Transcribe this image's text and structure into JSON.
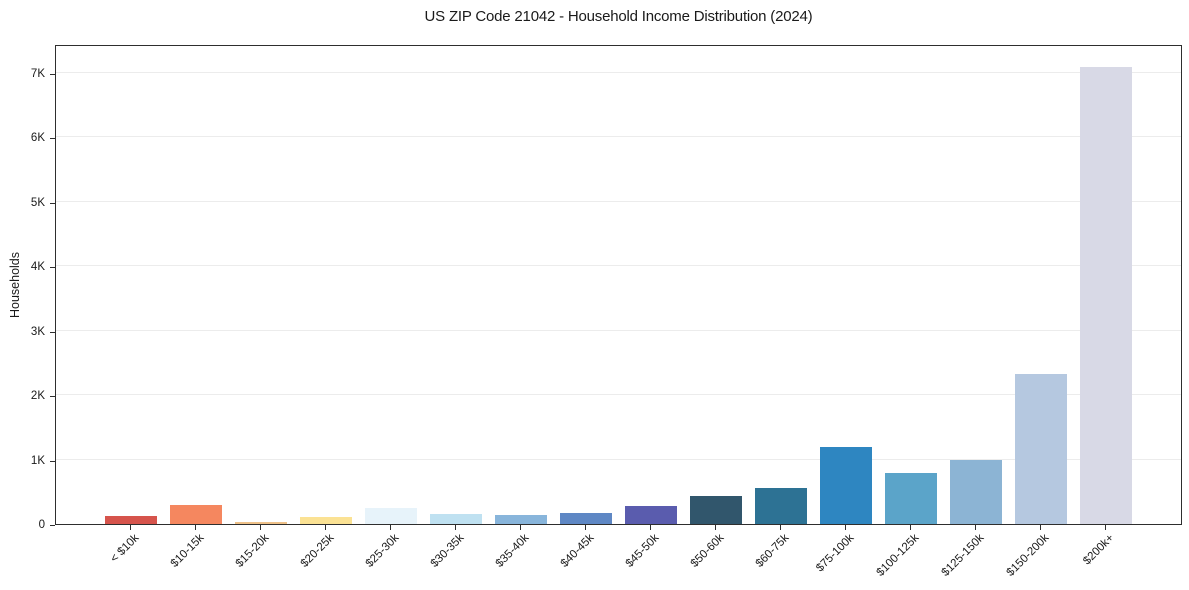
{
  "title": "US ZIP Code 21042 - Household Income Distribution (2024)",
  "chart_data": {
    "type": "bar",
    "title": "US ZIP Code 21042 - Household Income Distribution (2024)",
    "xlabel": "",
    "ylabel": "Households",
    "categories": [
      "< $10k",
      "$10-15k",
      "$15-20k",
      "$20-25k",
      "$25-30k",
      "$30-35k",
      "$35-40k",
      "$40-45k",
      "$45-50k",
      "$50-60k",
      "$60-75k",
      "$75-100k",
      "$100-125k",
      "$125-150k",
      "$150-200k",
      "$200k+"
    ],
    "values": [
      130,
      300,
      25,
      110,
      250,
      150,
      140,
      165,
      275,
      430,
      560,
      1200,
      790,
      990,
      2330,
      7090
    ],
    "bar_colors": [
      "#d6544c",
      "#f5875f",
      "#eec189",
      "#fbe294",
      "#e7f3fa",
      "#bfe1f1",
      "#88b5db",
      "#5e87c4",
      "#5a5cae",
      "#31566c",
      "#2d7294",
      "#2e86c1",
      "#5ba4c9",
      "#8cb4d4",
      "#b5c8e0",
      "#d8d9e6"
    ],
    "ylim": [
      0,
      7450
    ],
    "yticks": [
      {
        "value": 0,
        "label": "0"
      },
      {
        "value": 1000,
        "label": "1K"
      },
      {
        "value": 2000,
        "label": "2K"
      },
      {
        "value": 3000,
        "label": "3K"
      },
      {
        "value": 4000,
        "label": "4K"
      },
      {
        "value": 5000,
        "label": "5K"
      },
      {
        "value": 6000,
        "label": "6K"
      },
      {
        "value": 7000,
        "label": "7K"
      }
    ],
    "grid": "horizontal",
    "gridline_color": "#ececec",
    "legend_position": "none"
  }
}
